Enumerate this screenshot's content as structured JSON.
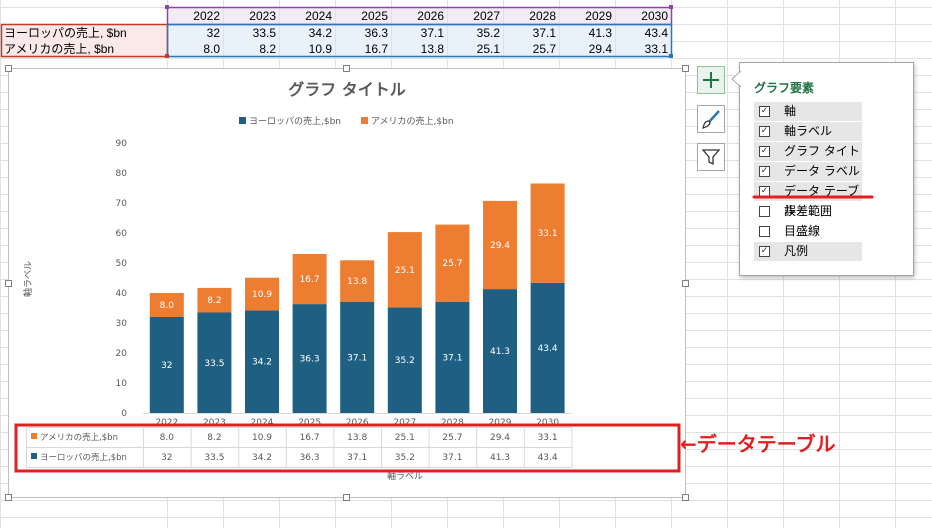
{
  "sheet": {
    "years": [
      "2022",
      "2023",
      "2024",
      "2025",
      "2026",
      "2027",
      "2028",
      "2029",
      "2030"
    ],
    "rows": [
      {
        "label": "ヨーロッパの売上, $bn",
        "values": [
          "32",
          "33.5",
          "34.2",
          "36.3",
          "37.1",
          "35.2",
          "37.1",
          "41.3",
          "43.4"
        ]
      },
      {
        "label": "アメリカの売上, $bn",
        "values": [
          "8.0",
          "8.2",
          "10.9",
          "16.7",
          "13.8",
          "25.1",
          "25.7",
          "29.4",
          "33.1"
        ]
      }
    ]
  },
  "chart": {
    "title": "グラフ タイトル",
    "y_axis_title": "軸ラベル",
    "x_axis_title": "軸ラベル",
    "legend": [
      "ヨーロッパの売上,$bn",
      "アメリカの売上,$bn"
    ],
    "y_ticks": [
      "0",
      "10",
      "20",
      "30",
      "40",
      "50",
      "60",
      "70",
      "80",
      "90"
    ],
    "table_rows": [
      {
        "name": "アメリカの売上,$bn",
        "values": [
          "8.0",
          "8.2",
          "10.9",
          "16.7",
          "13.8",
          "25.1",
          "25.7",
          "29.4",
          "33.1"
        ]
      },
      {
        "name": "ヨーロッパの売上,$bn",
        "values": [
          "32",
          "33.5",
          "34.2",
          "36.3",
          "37.1",
          "35.2",
          "37.1",
          "41.3",
          "43.4"
        ]
      }
    ]
  },
  "chart_data": {
    "type": "bar",
    "stacked": true,
    "title": "グラフ タイトル",
    "xlabel": "軸ラベル",
    "ylabel": "軸ラベル",
    "ylim": [
      0,
      90
    ],
    "y_ticks": [
      0,
      10,
      20,
      30,
      40,
      50,
      60,
      70,
      80,
      90
    ],
    "categories": [
      "2022",
      "2023",
      "2024",
      "2025",
      "2026",
      "2027",
      "2028",
      "2029",
      "2030"
    ],
    "series": [
      {
        "name": "ヨーロッパの売上,$bn",
        "color": "#1f5f82",
        "values": [
          32,
          33.5,
          34.2,
          36.3,
          37.1,
          35.2,
          37.1,
          41.3,
          43.4
        ],
        "labels": [
          "32",
          "33.5",
          "34.2",
          "36.3",
          "37.1",
          "35.2",
          "37.1",
          "41.3",
          "43.4"
        ]
      },
      {
        "name": "アメリカの売上,$bn",
        "color": "#ed7d31",
        "values": [
          8.0,
          8.2,
          10.9,
          16.7,
          13.8,
          25.1,
          25.7,
          29.4,
          33.1
        ],
        "labels": [
          "8.0",
          "8.2",
          "10.9",
          "16.7",
          "13.8",
          "25.1",
          "25.7",
          "29.4",
          "33.1"
        ]
      }
    ],
    "legend": "top",
    "grid": false,
    "data_table": true
  },
  "panel": {
    "title": "グラフ要素",
    "items": [
      {
        "label": "軸",
        "checked": true
      },
      {
        "label": "軸ラベル",
        "checked": true
      },
      {
        "label": "グラフ タイトル",
        "checked": true
      },
      {
        "label": "データ ラベル",
        "checked": true
      },
      {
        "label": "データ テーブル",
        "checked": true
      },
      {
        "label": "誤差範囲",
        "checked": false
      },
      {
        "label": "目盛線",
        "checked": false
      },
      {
        "label": "凡例",
        "checked": true
      }
    ]
  },
  "annotation": {
    "text": "←データテーブル",
    "color": "#e02020"
  },
  "colors": {
    "europe": "#1f5f82",
    "america": "#ed7d31",
    "highlight": "#e02020",
    "accent": "#217346"
  },
  "icons": {
    "add": "plus-icon",
    "style": "paintbrush-icon",
    "filter": "funnel-icon"
  }
}
